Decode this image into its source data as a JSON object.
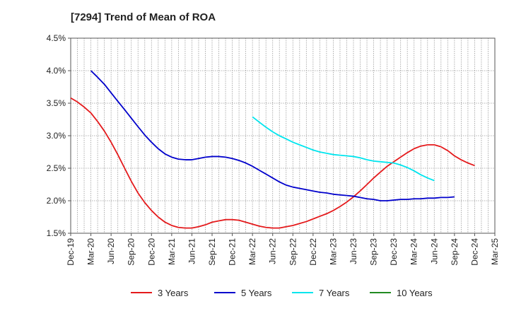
{
  "chart_data": {
    "type": "line",
    "title": "[7294]  Trend of Mean of ROA",
    "x_labels": [
      "Dec-19",
      "Mar-20",
      "Jun-20",
      "Sep-20",
      "Dec-20",
      "Mar-21",
      "Jun-21",
      "Sep-21",
      "Dec-21",
      "Mar-22",
      "Jun-22",
      "Sep-22",
      "Dec-22",
      "Mar-23",
      "Jun-23",
      "Sep-23",
      "Dec-23",
      "Mar-24",
      "Jun-24",
      "Sep-24",
      "Dec-24",
      "Mar-25"
    ],
    "y_tick_labels": [
      "1.5%",
      "2.0%",
      "2.5%",
      "3.0%",
      "3.5%",
      "4.0%",
      "4.5%"
    ],
    "y_ticks": [
      1.5,
      2.0,
      2.5,
      3.0,
      3.5,
      4.0,
      4.5
    ],
    "ylim": [
      1.5,
      4.5
    ],
    "grid": "vertical dotted, horizontal dotted",
    "legend_position": "bottom",
    "series": [
      {
        "name": "3 Years",
        "color": "#e41a1c",
        "values": [
          [
            0,
            3.58
          ],
          [
            0.33,
            3.52
          ],
          [
            0.67,
            3.44
          ],
          [
            1,
            3.35
          ],
          [
            1.33,
            3.22
          ],
          [
            1.67,
            3.07
          ],
          [
            2,
            2.9
          ],
          [
            2.33,
            2.71
          ],
          [
            2.67,
            2.5
          ],
          [
            3,
            2.3
          ],
          [
            3.33,
            2.12
          ],
          [
            3.67,
            1.97
          ],
          [
            4,
            1.85
          ],
          [
            4.33,
            1.75
          ],
          [
            4.67,
            1.67
          ],
          [
            5,
            1.62
          ],
          [
            5.33,
            1.59
          ],
          [
            5.67,
            1.58
          ],
          [
            6,
            1.58
          ],
          [
            6.33,
            1.6
          ],
          [
            6.67,
            1.63
          ],
          [
            7,
            1.67
          ],
          [
            7.33,
            1.69
          ],
          [
            7.67,
            1.71
          ],
          [
            8,
            1.71
          ],
          [
            8.33,
            1.7
          ],
          [
            8.67,
            1.67
          ],
          [
            9,
            1.64
          ],
          [
            9.33,
            1.61
          ],
          [
            9.67,
            1.59
          ],
          [
            10,
            1.58
          ],
          [
            10.33,
            1.58
          ],
          [
            10.67,
            1.6
          ],
          [
            11,
            1.62
          ],
          [
            11.33,
            1.65
          ],
          [
            11.67,
            1.68
          ],
          [
            12,
            1.72
          ],
          [
            12.33,
            1.76
          ],
          [
            12.67,
            1.8
          ],
          [
            13,
            1.85
          ],
          [
            13.33,
            1.91
          ],
          [
            13.67,
            1.98
          ],
          [
            14,
            2.06
          ],
          [
            14.33,
            2.15
          ],
          [
            14.67,
            2.25
          ],
          [
            15,
            2.35
          ],
          [
            15.33,
            2.44
          ],
          [
            15.67,
            2.53
          ],
          [
            16,
            2.6
          ],
          [
            16.33,
            2.67
          ],
          [
            16.67,
            2.74
          ],
          [
            17,
            2.8
          ],
          [
            17.33,
            2.84
          ],
          [
            17.67,
            2.86
          ],
          [
            18,
            2.86
          ],
          [
            18.33,
            2.83
          ],
          [
            18.67,
            2.77
          ],
          [
            19,
            2.69
          ],
          [
            19.33,
            2.63
          ],
          [
            19.67,
            2.58
          ],
          [
            20,
            2.54
          ]
        ]
      },
      {
        "name": "5 Years",
        "color": "#0000cc",
        "values": [
          [
            1,
            4.0
          ],
          [
            1.33,
            3.9
          ],
          [
            1.67,
            3.79
          ],
          [
            2,
            3.66
          ],
          [
            2.33,
            3.53
          ],
          [
            2.67,
            3.4
          ],
          [
            3,
            3.27
          ],
          [
            3.33,
            3.14
          ],
          [
            3.67,
            3.01
          ],
          [
            4,
            2.9
          ],
          [
            4.33,
            2.8
          ],
          [
            4.67,
            2.72
          ],
          [
            5,
            2.67
          ],
          [
            5.33,
            2.64
          ],
          [
            5.67,
            2.63
          ],
          [
            6,
            2.63
          ],
          [
            6.33,
            2.65
          ],
          [
            6.67,
            2.67
          ],
          [
            7,
            2.68
          ],
          [
            7.33,
            2.68
          ],
          [
            7.67,
            2.67
          ],
          [
            8,
            2.65
          ],
          [
            8.33,
            2.62
          ],
          [
            8.67,
            2.58
          ],
          [
            9,
            2.53
          ],
          [
            9.33,
            2.47
          ],
          [
            9.67,
            2.41
          ],
          [
            10,
            2.35
          ],
          [
            10.33,
            2.29
          ],
          [
            10.67,
            2.24
          ],
          [
            11,
            2.21
          ],
          [
            11.33,
            2.19
          ],
          [
            11.67,
            2.17
          ],
          [
            12,
            2.15
          ],
          [
            12.33,
            2.13
          ],
          [
            12.67,
            2.12
          ],
          [
            13,
            2.1
          ],
          [
            13.33,
            2.09
          ],
          [
            13.67,
            2.08
          ],
          [
            14,
            2.07
          ],
          [
            14.33,
            2.05
          ],
          [
            14.67,
            2.03
          ],
          [
            15,
            2.02
          ],
          [
            15.33,
            2.0
          ],
          [
            15.67,
            2.0
          ],
          [
            16,
            2.01
          ],
          [
            16.33,
            2.02
          ],
          [
            16.67,
            2.02
          ],
          [
            17,
            2.03
          ],
          [
            17.33,
            2.03
          ],
          [
            17.67,
            2.04
          ],
          [
            18,
            2.04
          ],
          [
            18.33,
            2.05
          ],
          [
            18.67,
            2.05
          ],
          [
            19,
            2.06
          ]
        ]
      },
      {
        "name": "7 Years",
        "color": "#00e5ee",
        "values": [
          [
            9,
            3.29
          ],
          [
            9.33,
            3.21
          ],
          [
            9.67,
            3.13
          ],
          [
            10,
            3.06
          ],
          [
            10.33,
            3.0
          ],
          [
            10.67,
            2.95
          ],
          [
            11,
            2.9
          ],
          [
            11.33,
            2.86
          ],
          [
            11.67,
            2.82
          ],
          [
            12,
            2.78
          ],
          [
            12.33,
            2.75
          ],
          [
            12.67,
            2.73
          ],
          [
            13,
            2.71
          ],
          [
            13.33,
            2.7
          ],
          [
            13.67,
            2.69
          ],
          [
            14,
            2.68
          ],
          [
            14.33,
            2.66
          ],
          [
            14.67,
            2.63
          ],
          [
            15,
            2.61
          ],
          [
            15.33,
            2.6
          ],
          [
            15.67,
            2.59
          ],
          [
            16,
            2.58
          ],
          [
            16.33,
            2.55
          ],
          [
            16.67,
            2.51
          ],
          [
            17,
            2.46
          ],
          [
            17.33,
            2.4
          ],
          [
            17.67,
            2.35
          ],
          [
            18,
            2.31
          ]
        ]
      },
      {
        "name": "10 Years",
        "color": "#228b22",
        "values": []
      }
    ]
  }
}
